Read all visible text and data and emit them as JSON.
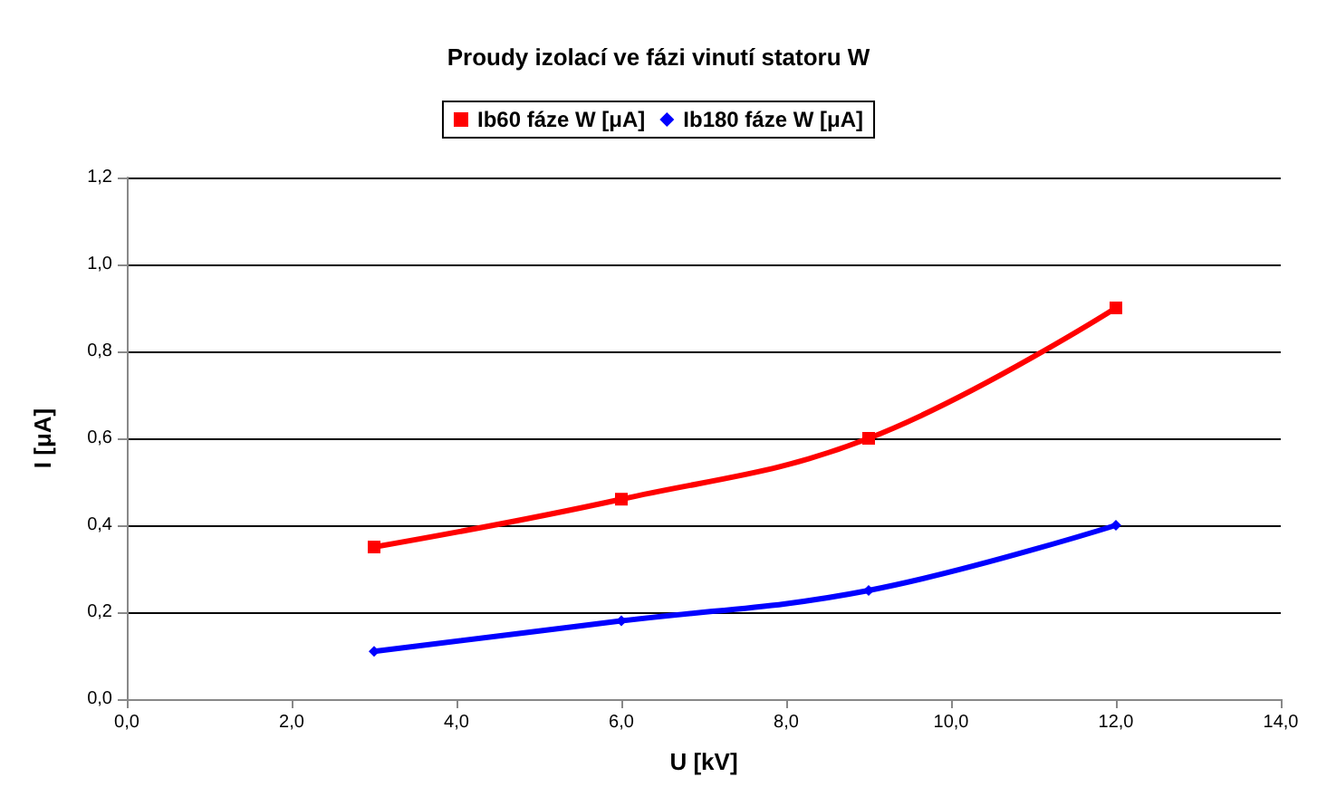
{
  "chart_data": {
    "type": "line",
    "title": "Proudy izolací ve fázi vinutí statoru W",
    "xlabel": "U [kV]",
    "ylabel": "I [μA]",
    "x": [
      3,
      6,
      9,
      12
    ],
    "series": [
      {
        "name": "Ib60 fáze W [μA]",
        "color": "#ff0000",
        "marker": "square",
        "values": [
          0.35,
          0.46,
          0.6,
          0.9
        ]
      },
      {
        "name": "Ib180 fáze W [μA]",
        "color": "#0000ff",
        "marker": "diamond",
        "values": [
          0.11,
          0.18,
          0.25,
          0.4
        ]
      }
    ],
    "xlim": [
      0,
      14
    ],
    "xticks": [
      {
        "value": 0,
        "label": "0,0"
      },
      {
        "value": 2,
        "label": "2,0"
      },
      {
        "value": 4,
        "label": "4,0"
      },
      {
        "value": 6,
        "label": "6,0"
      },
      {
        "value": 8,
        "label": "8,0"
      },
      {
        "value": 10,
        "label": "10,0"
      },
      {
        "value": 12,
        "label": "12,0"
      },
      {
        "value": 14,
        "label": "14,0"
      }
    ],
    "ylim": [
      0,
      1.2
    ],
    "yticks": [
      {
        "value": 0,
        "label": "0,0"
      },
      {
        "value": 0.2,
        "label": "0,2"
      },
      {
        "value": 0.4,
        "label": "0,4"
      },
      {
        "value": 0.6,
        "label": "0,6"
      },
      {
        "value": 0.8,
        "label": "0,8"
      },
      {
        "value": 1,
        "label": "1,0"
      },
      {
        "value": 1.2,
        "label": "1,2"
      }
    ],
    "grid": "y",
    "legend": "top"
  }
}
